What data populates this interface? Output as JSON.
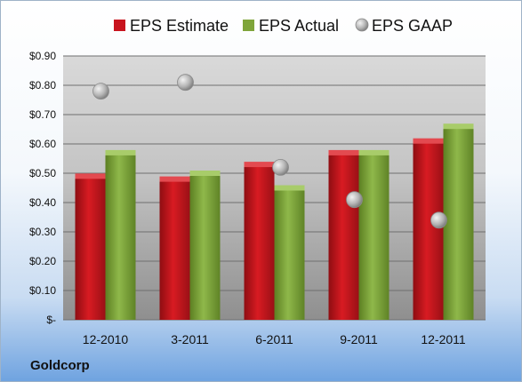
{
  "company": "Goldcorp",
  "colors": {
    "estimate": "#c8141e",
    "actual": "#7fa53a",
    "gaap": "#b8b8b8"
  },
  "chart_data": {
    "type": "bar",
    "categories": [
      "12-2010",
      "3-2011",
      "6-2011",
      "9-2011",
      "12-2011"
    ],
    "series": [
      {
        "name": "EPS Estimate",
        "type": "bar",
        "values": [
          0.49,
          0.48,
          0.53,
          0.57,
          0.61
        ]
      },
      {
        "name": "EPS Actual",
        "type": "bar",
        "values": [
          0.57,
          0.5,
          0.45,
          0.57,
          0.66
        ]
      },
      {
        "name": "EPS GAAP",
        "type": "scatter",
        "values": [
          0.78,
          0.81,
          0.52,
          0.41,
          0.34
        ]
      }
    ],
    "ylim": [
      0,
      0.9
    ],
    "yticks": [
      0,
      0.1,
      0.2,
      0.3,
      0.4,
      0.5,
      0.6,
      0.7,
      0.8,
      0.9
    ],
    "ytick_labels": [
      "$-",
      "$0.10",
      "$0.20",
      "$0.30",
      "$0.40",
      "$0.50",
      "$0.60",
      "$0.70",
      "$0.80",
      "$0.90"
    ],
    "grid": true,
    "legend_position": "top"
  }
}
